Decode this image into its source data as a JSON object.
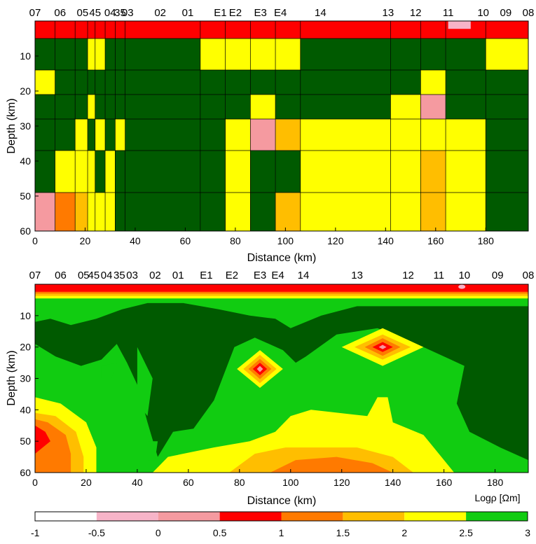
{
  "colors": {
    "white": "#ffffff",
    "light_pink": "#f7b4c8",
    "pink": "#f59aa0",
    "red": "#ff0000",
    "dark_orange": "#ff7a00",
    "orange": "#ffbe00",
    "yellow": "#ffff00",
    "green": "#11cc11",
    "dark_green": "#005a00"
  },
  "chart_data": [
    {
      "type": "heatmap",
      "xlabel": "Distance (km)",
      "ylabel": "Depth (km)",
      "xlim": [
        0,
        197
      ],
      "ylim": [
        0,
        60
      ],
      "y_inverted": true,
      "xticks": [
        0,
        20,
        40,
        60,
        80,
        100,
        120,
        140,
        160,
        180
      ],
      "yticks": [
        10,
        20,
        30,
        40,
        50,
        60
      ],
      "stations": [
        {
          "name": "07",
          "x": 0
        },
        {
          "name": "06",
          "x": 10
        },
        {
          "name": "05",
          "x": 19
        },
        {
          "name": "45",
          "x": 24
        },
        {
          "name": "04",
          "x": 30
        },
        {
          "name": "35",
          "x": 34
        },
        {
          "name": "03",
          "x": 37
        },
        {
          "name": "02",
          "x": 50
        },
        {
          "name": "01",
          "x": 61
        },
        {
          "name": "E1",
          "x": 74
        },
        {
          "name": "E2",
          "x": 80
        },
        {
          "name": "E3",
          "x": 90
        },
        {
          "name": "E4",
          "x": 98
        },
        {
          "name": "14",
          "x": 114
        },
        {
          "name": "13",
          "x": 141
        },
        {
          "name": "12",
          "x": 152
        },
        {
          "name": "11",
          "x": 165
        },
        {
          "name": "10",
          "x": 179
        },
        {
          "name": "09",
          "x": 188
        },
        {
          "name": "08",
          "x": 197
        }
      ],
      "layer_bounds_km": [
        0,
        5,
        14,
        21,
        28,
        37,
        49,
        60
      ],
      "column_bounds_km": [
        0,
        8,
        16,
        21,
        24,
        28,
        32,
        36,
        66,
        76,
        86,
        96,
        106,
        142,
        154,
        164,
        180,
        197
      ],
      "cells_log_rho": [
        [
          0.7,
          0.7,
          0.7,
          0.7,
          0.7,
          0.7,
          0.7,
          0.7,
          0.7,
          0.7,
          0.7,
          0.7,
          0.7,
          0.7,
          0.7,
          0.7,
          0.7
        ],
        [
          3.0,
          3.0,
          3.0,
          2.3,
          2.3,
          3.0,
          3.0,
          3.0,
          2.3,
          2.3,
          2.3,
          2.3,
          3.0,
          3.0,
          3.0,
          3.0,
          2.3
        ],
        [
          2.3,
          3.0,
          3.0,
          3.0,
          3.0,
          3.0,
          3.0,
          3.0,
          3.0,
          3.0,
          3.0,
          3.0,
          3.0,
          3.0,
          2.3,
          3.0,
          3.0
        ],
        [
          3.0,
          3.0,
          3.0,
          2.3,
          3.0,
          3.0,
          3.0,
          3.0,
          3.0,
          3.0,
          2.3,
          3.0,
          3.0,
          2.3,
          0.0,
          3.0,
          3.0
        ],
        [
          3.0,
          3.0,
          2.3,
          3.0,
          2.3,
          3.0,
          2.3,
          3.0,
          3.0,
          2.3,
          0.0,
          1.8,
          2.3,
          2.3,
          2.3,
          2.3,
          3.0
        ],
        [
          3.0,
          2.3,
          2.3,
          2.3,
          3.0,
          2.3,
          3.0,
          3.0,
          3.0,
          2.3,
          3.0,
          3.0,
          2.3,
          2.3,
          1.8,
          2.3,
          3.0
        ],
        [
          0.0,
          1.3,
          1.8,
          2.3,
          2.3,
          2.3,
          3.0,
          3.0,
          3.0,
          2.3,
          3.0,
          1.8,
          2.3,
          2.3,
          1.8,
          2.3,
          3.0
        ]
      ],
      "cells_top_layer_override": {
        "column_x_range_km": [
          165,
          174
        ],
        "log_rho": -0.3
      }
    },
    {
      "type": "heatmap",
      "xlabel": "Distance (km)",
      "ylabel": "Depth (km)",
      "xlim": [
        0,
        193
      ],
      "ylim": [
        0,
        60
      ],
      "y_inverted": true,
      "xticks": [
        0,
        20,
        40,
        60,
        80,
        100,
        120,
        140,
        160,
        180
      ],
      "yticks": [
        10,
        20,
        30,
        40,
        50,
        60
      ],
      "stations": [
        {
          "name": "07",
          "x": 0
        },
        {
          "name": "06",
          "x": 10
        },
        {
          "name": "05",
          "x": 19
        },
        {
          "name": "45",
          "x": 23
        },
        {
          "name": "04",
          "x": 28
        },
        {
          "name": "35",
          "x": 33
        },
        {
          "name": "03",
          "x": 38
        },
        {
          "name": "02",
          "x": 47
        },
        {
          "name": "01",
          "x": 56
        },
        {
          "name": "E1",
          "x": 67
        },
        {
          "name": "E2",
          "x": 77
        },
        {
          "name": "E3",
          "x": 88
        },
        {
          "name": "E4",
          "x": 95
        },
        {
          "name": "14",
          "x": 105
        },
        {
          "name": "13",
          "x": 126
        },
        {
          "name": "12",
          "x": 146
        },
        {
          "name": "11",
          "x": 158
        },
        {
          "name": "10",
          "x": 168
        },
        {
          "name": "09",
          "x": 181
        },
        {
          "name": "08",
          "x": 193
        }
      ],
      "colorbar": {
        "label": "Logρ [Ωm]",
        "bounds": [
          -1,
          -0.5,
          0,
          0.5,
          1,
          1.5,
          2,
          2.5,
          3
        ],
        "ticks": [
          "-1",
          "-0.5",
          "0",
          "0.5",
          "1",
          "1.5",
          "2",
          "2.5",
          "3"
        ]
      }
    }
  ]
}
